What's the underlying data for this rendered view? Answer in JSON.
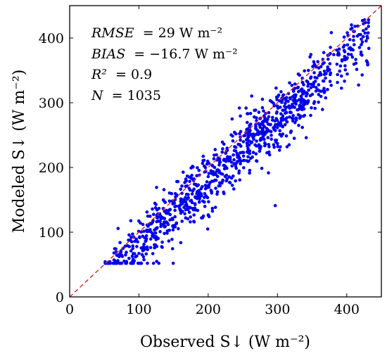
{
  "chart_data": {
    "type": "scatter",
    "xlabel": "Observed S↓ (W m⁻²)",
    "ylabel": "Modeled S↓ (W m⁻²)",
    "xlim": [
      0,
      450
    ],
    "ylim": [
      0,
      450
    ],
    "x_ticks": [
      "0",
      "100",
      "200",
      "300",
      "400"
    ],
    "y_ticks": [
      "0",
      "100",
      "200",
      "300",
      "400"
    ],
    "grid": false,
    "point_color": "#0000ee",
    "reference_line": {
      "type": "1:1",
      "color": "#dd2222",
      "style": "dashed"
    },
    "stats": {
      "rmse": {
        "label": "RMSE",
        "value": "= 29 W m⁻²"
      },
      "bias": {
        "label": "BIAS",
        "value": "= −16.7 W m⁻²"
      },
      "r2": {
        "label": "R²",
        "value": "= 0.9"
      },
      "n": {
        "label": "N",
        "value": "= 1035"
      }
    },
    "points": {
      "n": 1035,
      "x_range": [
        50,
        432
      ],
      "typical_y_given_x": "y ≈ 0.97x − 11 with scatter of about ±30, most points below the 1:1 line"
    }
  }
}
